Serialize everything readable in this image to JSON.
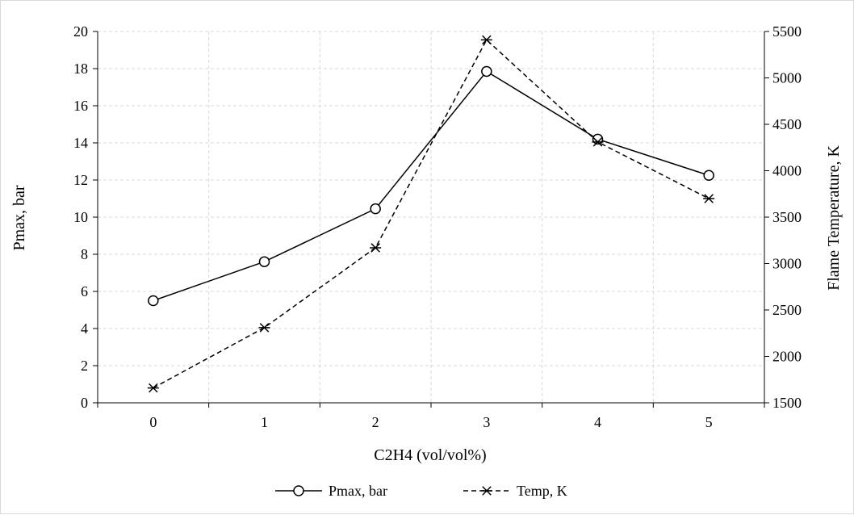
{
  "chart_data": {
    "type": "line",
    "x": [
      0,
      1,
      2,
      3,
      4,
      5
    ],
    "xlabel": "C2H4 (vol/vol%)",
    "x_tick_labels": [
      "0",
      "1",
      "2",
      "3",
      "4",
      "5"
    ],
    "ylabel_left": "Pmax, bar",
    "ylim_left": [
      0,
      20
    ],
    "y_left_tick_labels": [
      "0",
      "2",
      "4",
      "6",
      "8",
      "10",
      "12",
      "14",
      "16",
      "18",
      "20"
    ],
    "ylabel_right": "Flame Temperature, K",
    "ylim_right": [
      1500,
      5500
    ],
    "y_right_tick_labels": [
      "1500",
      "2000",
      "2500",
      "3000",
      "3500",
      "4000",
      "4500",
      "5000",
      "5500"
    ],
    "grid": true,
    "legend_position": "bottom",
    "series": [
      {
        "name": "Pmax, bar",
        "axis": "left",
        "values": [
          5.5,
          7.6,
          10.45,
          17.85,
          14.2,
          12.25
        ],
        "line_style": "solid",
        "marker": "circle",
        "color": "#000000"
      },
      {
        "name": "Temp, K",
        "axis": "right",
        "values": [
          1660,
          2310,
          3170,
          5410,
          4310,
          3700
        ],
        "line_style": "dashed",
        "marker": "star",
        "color": "#000000"
      }
    ]
  }
}
